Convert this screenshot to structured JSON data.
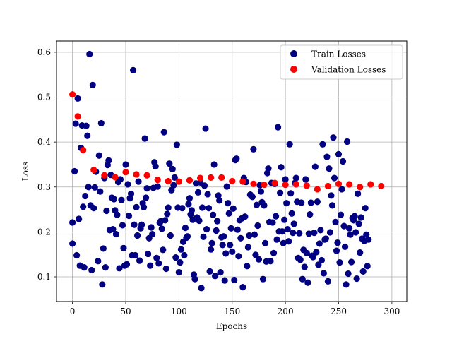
{
  "chart_data": {
    "type": "scatter",
    "title": "",
    "xlabel": "Epochs",
    "ylabel": "Loss",
    "xlim": [
      -15,
      314
    ],
    "ylim": [
      0.045,
      0.625
    ],
    "x_ticks": [
      0,
      50,
      100,
      150,
      200,
      250,
      300
    ],
    "y_ticks": [
      0.1,
      0.2,
      0.3,
      0.4,
      0.5,
      0.6
    ],
    "grid": true,
    "legend_position": "top-right",
    "series": [
      {
        "name": "Train Losses",
        "color": "#000080",
        "points": [
          [
            0,
            0.174
          ],
          [
            0,
            0.221
          ],
          [
            2,
            0.335
          ],
          [
            3,
            0.441
          ],
          [
            4,
            0.148
          ],
          [
            5,
            0.497
          ],
          [
            6,
            0.229
          ],
          [
            7,
            0.125
          ],
          [
            8,
            0.387
          ],
          [
            9,
            0.437
          ],
          [
            10,
            0.256
          ],
          [
            11,
            0.121
          ],
          [
            12,
            0.28
          ],
          [
            13,
            0.436
          ],
          [
            14,
            0.414
          ],
          [
            15,
            0.3
          ],
          [
            16,
            0.596
          ],
          [
            17,
            0.259
          ],
          [
            18,
            0.115
          ],
          [
            19,
            0.527
          ],
          [
            20,
            0.253
          ],
          [
            21,
            0.299
          ],
          [
            22,
            0.334
          ],
          [
            24,
            0.135
          ],
          [
            25,
            0.37
          ],
          [
            26,
            0.29
          ],
          [
            27,
            0.442
          ],
          [
            28,
            0.083
          ],
          [
            29,
            0.163
          ],
          [
            30,
            0.32
          ],
          [
            31,
            0.121
          ],
          [
            32,
            0.247
          ],
          [
            33,
            0.349
          ],
          [
            34,
            0.359
          ],
          [
            35,
            0.204
          ],
          [
            36,
            0.327
          ],
          [
            37,
            0.276
          ],
          [
            38,
            0.206
          ],
          [
            39,
            0.273
          ],
          [
            40,
            0.248
          ],
          [
            41,
            0.195
          ],
          [
            42,
            0.238
          ],
          [
            43,
            0.311
          ],
          [
            44,
            0.119
          ],
          [
            45,
            0.317
          ],
          [
            46,
            0.271
          ],
          [
            47,
            0.215
          ],
          [
            48,
            0.164
          ],
          [
            49,
            0.125
          ],
          [
            50,
            0.35
          ],
          [
            51,
            0.128
          ],
          [
            52,
            0.306
          ],
          [
            53,
            0.236
          ],
          [
            54,
            0.275
          ],
          [
            55,
            0.285
          ],
          [
            56,
            0.148
          ],
          [
            57,
            0.56
          ],
          [
            58,
            0.216
          ],
          [
            59,
            0.148
          ],
          [
            60,
            0.255
          ],
          [
            61,
            0.192
          ],
          [
            62,
            0.312
          ],
          [
            63,
            0.136
          ],
          [
            64,
            0.208
          ],
          [
            65,
            0.216
          ],
          [
            66,
            0.264
          ],
          [
            67,
            0.255
          ],
          [
            68,
            0.408
          ],
          [
            69,
            0.276
          ],
          [
            70,
            0.297
          ],
          [
            71,
            0.151
          ],
          [
            72,
            0.186
          ],
          [
            73,
            0.125
          ],
          [
            74,
            0.21
          ],
          [
            75,
            0.195
          ],
          [
            76,
            0.298
          ],
          [
            77,
            0.355
          ],
          [
            78,
            0.346
          ],
          [
            79,
            0.142
          ],
          [
            80,
            0.301
          ],
          [
            81,
            0.13
          ],
          [
            82,
            0.22
          ],
          [
            83,
            0.224
          ],
          [
            84,
            0.207
          ],
          [
            85,
            0.16
          ],
          [
            86,
            0.422
          ],
          [
            87,
            0.226
          ],
          [
            88,
            0.118
          ],
          [
            89,
            0.24
          ],
          [
            90,
            0.254
          ],
          [
            91,
            0.352
          ],
          [
            92,
            0.192
          ],
          [
            93,
            0.293
          ],
          [
            94,
            0.34
          ],
          [
            95,
            0.304
          ],
          [
            96,
            0.321
          ],
          [
            97,
            0.143
          ],
          [
            98,
            0.394
          ],
          [
            99,
            0.254
          ],
          [
            100,
            0.11
          ],
          [
            101,
            0.132
          ],
          [
            102,
            0.161
          ],
          [
            103,
            0.253
          ],
          [
            104,
            0.178
          ],
          [
            105,
            0.148
          ],
          [
            106,
            0.209
          ],
          [
            107,
            0.187
          ],
          [
            108,
            0.19
          ],
          [
            109,
            0.262
          ],
          [
            110,
            0.275
          ],
          [
            111,
            0.239
          ],
          [
            112,
            0.248
          ],
          [
            113,
            0.227
          ],
          [
            114,
            0.105
          ],
          [
            115,
            0.095
          ],
          [
            116,
            0.308
          ],
          [
            117,
            0.232
          ],
          [
            118,
            0.288
          ],
          [
            119,
            0.225
          ],
          [
            120,
            0.31
          ],
          [
            121,
            0.075
          ],
          [
            122,
            0.254
          ],
          [
            123,
            0.189
          ],
          [
            124,
            0.303
          ],
          [
            125,
            0.43
          ],
          [
            126,
            0.206
          ],
          [
            127,
            0.284
          ],
          [
            128,
            0.253
          ],
          [
            129,
            0.112
          ],
          [
            130,
            0.161
          ],
          [
            131,
            0.175
          ],
          [
            132,
            0.238
          ],
          [
            133,
            0.35
          ],
          [
            134,
            0.102
          ],
          [
            135,
            0.203
          ],
          [
            136,
            0.224
          ],
          [
            137,
            0.281
          ],
          [
            138,
            0.27
          ],
          [
            139,
            0.11
          ],
          [
            140,
            0.188
          ],
          [
            141,
            0.171
          ],
          [
            142,
            0.19
          ],
          [
            143,
            0.092
          ],
          [
            144,
            0.152
          ],
          [
            145,
            0.301
          ],
          [
            146,
            0.264
          ],
          [
            147,
            0.241
          ],
          [
            148,
            0.171
          ],
          [
            149,
            0.208
          ],
          [
            150,
            0.156
          ],
          [
            151,
            0.252
          ],
          [
            152,
            0.093
          ],
          [
            153,
            0.36
          ],
          [
            154,
            0.363
          ],
          [
            155,
            0.205
          ],
          [
            156,
            0.146
          ],
          [
            157,
            0.226
          ],
          [
            158,
            0.186
          ],
          [
            159,
            0.23
          ],
          [
            160,
            0.077
          ],
          [
            161,
            0.32
          ],
          [
            162,
            0.234
          ],
          [
            163,
            0.311
          ],
          [
            164,
            0.124
          ],
          [
            165,
            0.166
          ],
          [
            166,
            0.192
          ],
          [
            167,
            0.283
          ],
          [
            168,
            0.28
          ],
          [
            169,
            0.278
          ],
          [
            170,
            0.384
          ],
          [
            171,
            0.194
          ],
          [
            172,
            0.149
          ],
          [
            173,
            0.26
          ],
          [
            174,
            0.214
          ],
          [
            175,
            0.139
          ],
          [
            176,
            0.304
          ],
          [
            177,
            0.29
          ],
          [
            178,
            0.266
          ],
          [
            179,
            0.095
          ],
          [
            180,
            0.259
          ],
          [
            181,
            0.175
          ],
          [
            182,
            0.134
          ],
          [
            183,
            0.331
          ],
          [
            184,
            0.341
          ],
          [
            185,
            0.222
          ],
          [
            186,
            0.135
          ],
          [
            187,
            0.309
          ],
          [
            188,
            0.221
          ],
          [
            189,
            0.153
          ],
          [
            190,
            0.307
          ],
          [
            191,
            0.235
          ],
          [
            192,
            0.183
          ],
          [
            193,
            0.433
          ],
          [
            194,
            0.201
          ],
          [
            195,
            0.287
          ],
          [
            196,
            0.344
          ],
          [
            197,
            0.201
          ],
          [
            198,
            0.175
          ],
          [
            199,
            0.227
          ],
          [
            200,
            0.317
          ],
          [
            201,
            0.264
          ],
          [
            202,
            0.206
          ],
          [
            203,
            0.179
          ],
          [
            204,
            0.395
          ],
          [
            205,
            0.286
          ],
          [
            206,
            0.241
          ],
          [
            207,
            0.198
          ],
          [
            208,
            0.218
          ],
          [
            209,
            0.309
          ],
          [
            210,
            0.32
          ],
          [
            211,
            0.267
          ],
          [
            212,
            0.142
          ],
          [
            213,
            0.197
          ],
          [
            214,
            0.138
          ],
          [
            215,
            0.265
          ],
          [
            216,
            0.095
          ],
          [
            217,
            0.16
          ],
          [
            218,
            0.122
          ],
          [
            219,
            0.317
          ],
          [
            220,
            0.153
          ],
          [
            221,
            0.087
          ],
          [
            222,
            0.196
          ],
          [
            223,
            0.239
          ],
          [
            224,
            0.265
          ],
          [
            225,
            0.147
          ],
          [
            226,
            0.144
          ],
          [
            227,
            0.198
          ],
          [
            228,
            0.345
          ],
          [
            229,
            0.155
          ],
          [
            230,
            0.267
          ],
          [
            231,
            0.127
          ],
          [
            232,
            0.174
          ],
          [
            233,
            0.204
          ],
          [
            234,
            0.137
          ],
          [
            235,
            0.395
          ],
          [
            236,
            0.108
          ],
          [
            237,
            0.183
          ],
          [
            238,
            0.185
          ],
          [
            239,
            0.367
          ],
          [
            240,
            0.09
          ],
          [
            241,
            0.341
          ],
          [
            242,
            0.199
          ],
          [
            243,
            0.281
          ],
          [
            244,
            0.259
          ],
          [
            245,
            0.41
          ],
          [
            246,
            0.32
          ],
          [
            247,
            0.222
          ],
          [
            248,
            0.158
          ],
          [
            249,
            0.176
          ],
          [
            250,
            0.373
          ],
          [
            251,
            0.132
          ],
          [
            252,
            0.238
          ],
          [
            253,
            0.295
          ],
          [
            254,
            0.357
          ],
          [
            255,
            0.213
          ],
          [
            256,
            0.167
          ],
          [
            257,
            0.083
          ],
          [
            258,
            0.401
          ],
          [
            259,
            0.107
          ],
          [
            260,
            0.208
          ],
          [
            261,
            0.194
          ],
          [
            262,
            0.133
          ],
          [
            263,
            0.231
          ],
          [
            264,
            0.226
          ],
          [
            265,
            0.235
          ],
          [
            266,
            0.199
          ],
          [
            267,
            0.096
          ],
          [
            268,
            0.285
          ],
          [
            269,
            0.218
          ],
          [
            270,
            0.154
          ],
          [
            271,
            0.232
          ],
          [
            272,
            0.185
          ],
          [
            273,
            0.112
          ],
          [
            274,
            0.18
          ],
          [
            275,
            0.253
          ],
          [
            276,
            0.194
          ],
          [
            277,
            0.124
          ],
          [
            278,
            0.183
          ]
        ]
      },
      {
        "name": "Validation Losses",
        "color": "#ff0000",
        "points": [
          [
            0,
            0.506
          ],
          [
            5,
            0.457
          ],
          [
            10,
            0.382
          ],
          [
            20,
            0.338
          ],
          [
            30,
            0.326
          ],
          [
            40,
            0.322
          ],
          [
            50,
            0.333
          ],
          [
            60,
            0.328
          ],
          [
            70,
            0.326
          ],
          [
            80,
            0.316
          ],
          [
            90,
            0.313
          ],
          [
            100,
            0.312
          ],
          [
            110,
            0.315
          ],
          [
            120,
            0.32
          ],
          [
            130,
            0.321
          ],
          [
            140,
            0.321
          ],
          [
            150,
            0.313
          ],
          [
            160,
            0.312
          ],
          [
            170,
            0.307
          ],
          [
            180,
            0.305
          ],
          [
            190,
            0.309
          ],
          [
            200,
            0.305
          ],
          [
            210,
            0.306
          ],
          [
            220,
            0.303
          ],
          [
            230,
            0.295
          ],
          [
            240,
            0.302
          ],
          [
            250,
            0.307
          ],
          [
            260,
            0.306
          ],
          [
            270,
            0.3
          ],
          [
            280,
            0.306
          ],
          [
            290,
            0.302
          ]
        ]
      }
    ]
  }
}
